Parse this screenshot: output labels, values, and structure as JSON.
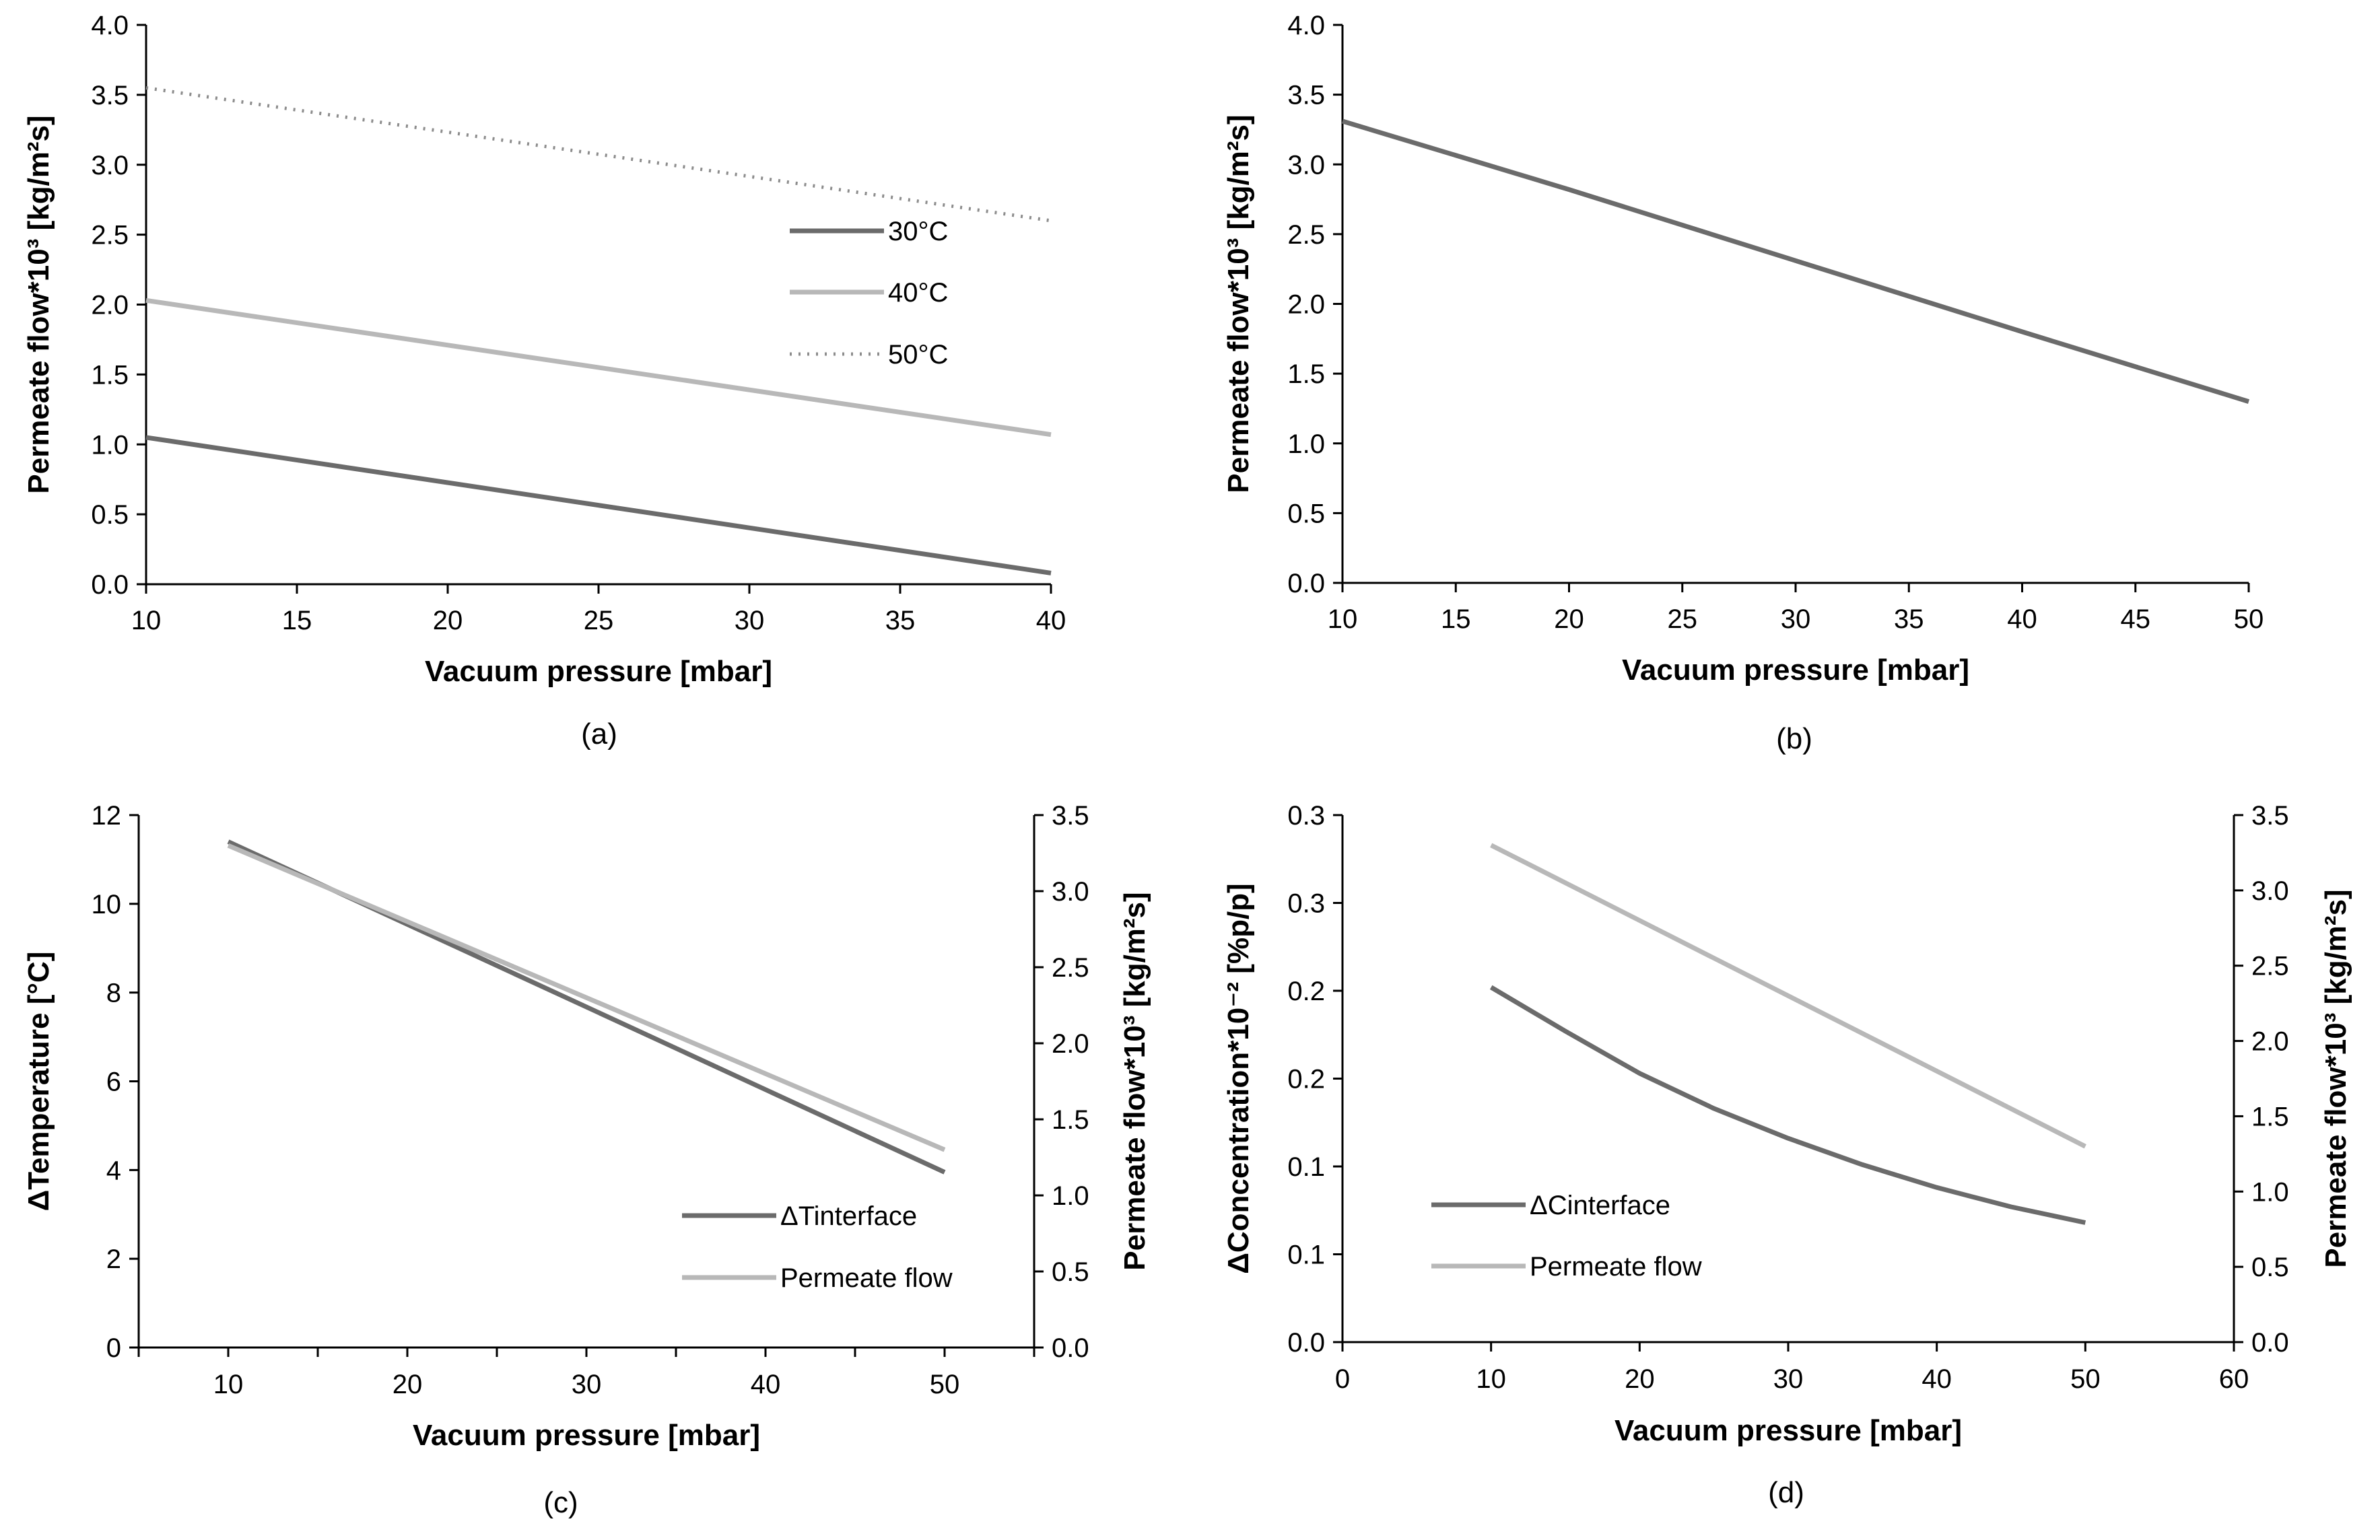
{
  "colors": {
    "dark": "#6b6b6b",
    "light": "#b8b8b8",
    "dotted": "#8c8c8c",
    "axis": "#000000"
  },
  "chart_data": [
    {
      "id": "a",
      "type": "line",
      "caption": "(a)",
      "xlabel": "Vacuum pressure [mbar]",
      "ylabel": "Permeate flow*10³ [kg/m²s]",
      "xlim": [
        10,
        40
      ],
      "ylim": [
        0,
        4
      ],
      "xticks": [
        10,
        15,
        20,
        25,
        30,
        35,
        40
      ],
      "xtick_labels": [
        "10",
        "15",
        "20",
        "25",
        "30",
        "35",
        "40"
      ],
      "yticks": [
        0,
        0.5,
        1,
        1.5,
        2,
        2.5,
        3,
        3.5,
        4
      ],
      "ytick_labels": [
        "0.0",
        "0.5",
        "1.0",
        "1.5",
        "2.0",
        "2.5",
        "3.0",
        "3.5",
        "4.0"
      ],
      "legend_position": "right",
      "series": [
        {
          "name": "30°C",
          "style": "dark",
          "x": [
            10,
            40
          ],
          "y": [
            1.05,
            0.08
          ]
        },
        {
          "name": "40°C",
          "style": "light",
          "x": [
            10,
            40
          ],
          "y": [
            2.03,
            1.07
          ]
        },
        {
          "name": "50°C",
          "style": "dotted",
          "x": [
            10,
            40
          ],
          "y": [
            3.55,
            2.6
          ]
        }
      ]
    },
    {
      "id": "b",
      "type": "line",
      "caption": "(b)",
      "xlabel": "Vacuum pressure [mbar]",
      "ylabel": "Permeate flow*10³ [kg/m²s]",
      "xlim": [
        10,
        50
      ],
      "ylim": [
        0,
        4
      ],
      "xticks": [
        10,
        15,
        20,
        25,
        30,
        35,
        40,
        45,
        50
      ],
      "xtick_labels": [
        "10",
        "15",
        "20",
        "25",
        "30",
        "35",
        "40",
        "45",
        "50"
      ],
      "yticks": [
        0,
        0.5,
        1,
        1.5,
        2,
        2.5,
        3,
        3.5,
        4
      ],
      "ytick_labels": [
        "0.0",
        "0.5",
        "1.0",
        "1.5",
        "2.0",
        "2.5",
        "3.0",
        "3.5",
        "4.0"
      ],
      "series": [
        {
          "name": "Permeate flow",
          "style": "dark",
          "x": [
            10,
            20,
            30,
            40,
            50
          ],
          "y": [
            3.31,
            2.82,
            2.31,
            1.8,
            1.3
          ]
        }
      ]
    },
    {
      "id": "c",
      "type": "line",
      "caption": "(c)",
      "xlabel": "Vacuum pressure [mbar]",
      "ylabel": "ΔTemperature [°C]",
      "y2label": "Permeate flow*10³ [kg/m²s]",
      "xlim": [
        5,
        55
      ],
      "ylim": [
        0,
        12
      ],
      "y2lim": [
        0,
        3.5
      ],
      "xticks": [
        10,
        20,
        30,
        40,
        50
      ],
      "xtick_labels": [
        "10",
        "20",
        "30",
        "40",
        "50"
      ],
      "yticks": [
        0,
        2,
        4,
        6,
        8,
        10,
        12
      ],
      "ytick_labels": [
        "0",
        "2",
        "4",
        "6",
        "8",
        "10",
        "12"
      ],
      "y2ticks": [
        0,
        0.5,
        1,
        1.5,
        2,
        2.5,
        3,
        3.5
      ],
      "y2tick_labels": [
        "0.0",
        "0.5",
        "1.0",
        "1.5",
        "2.0",
        "2.5",
        "3.0",
        "3.5"
      ],
      "legend_position": "bottom-right",
      "series": [
        {
          "name": "ΔTinterface",
          "style": "dark",
          "axis": "left",
          "x": [
            10,
            50
          ],
          "y": [
            11.4,
            3.95
          ]
        },
        {
          "name": "Permeate flow",
          "style": "light",
          "axis": "right",
          "x": [
            10,
            50
          ],
          "y": [
            3.3,
            1.3
          ]
        }
      ]
    },
    {
      "id": "d",
      "type": "line",
      "caption": "(d)",
      "xlabel": "Vacuum pressure [mbar]",
      "ylabel": "ΔConcentration*10⁻² [%p/p]",
      "y2label": "Permeate flow*10³ [kg/m²s]",
      "xlim": [
        0,
        60
      ],
      "ylim": [
        0,
        0.3
      ],
      "y2lim": [
        0,
        3.5
      ],
      "xticks": [
        0,
        10,
        20,
        30,
        40,
        50,
        60
      ],
      "xtick_labels": [
        "0",
        "10",
        "20",
        "30",
        "40",
        "50",
        "60"
      ],
      "yticks": [
        0,
        0.05,
        0.1,
        0.15,
        0.2,
        0.25,
        0.3
      ],
      "ytick_labels": [
        "0.0",
        "0.1",
        "0.1",
        "0.2",
        "0.2",
        "0.3",
        "0.3"
      ],
      "y2ticks": [
        0,
        0.5,
        1,
        1.5,
        2,
        2.5,
        3,
        3.5
      ],
      "y2tick_labels": [
        "0.0",
        "0.5",
        "1.0",
        "1.5",
        "2.0",
        "2.5",
        "3.0",
        "3.5"
      ],
      "legend_position": "bottom-left",
      "series": [
        {
          "name": "ΔCinterface",
          "style": "dark",
          "axis": "left",
          "x": [
            10,
            15,
            20,
            25,
            30,
            35,
            40,
            45,
            50
          ],
          "y": [
            0.202,
            0.177,
            0.153,
            0.133,
            0.116,
            0.101,
            0.088,
            0.077,
            0.068
          ]
        },
        {
          "name": "Permeate flow",
          "style": "light",
          "axis": "right",
          "x": [
            10,
            50
          ],
          "y": [
            3.3,
            1.3
          ]
        }
      ]
    }
  ]
}
